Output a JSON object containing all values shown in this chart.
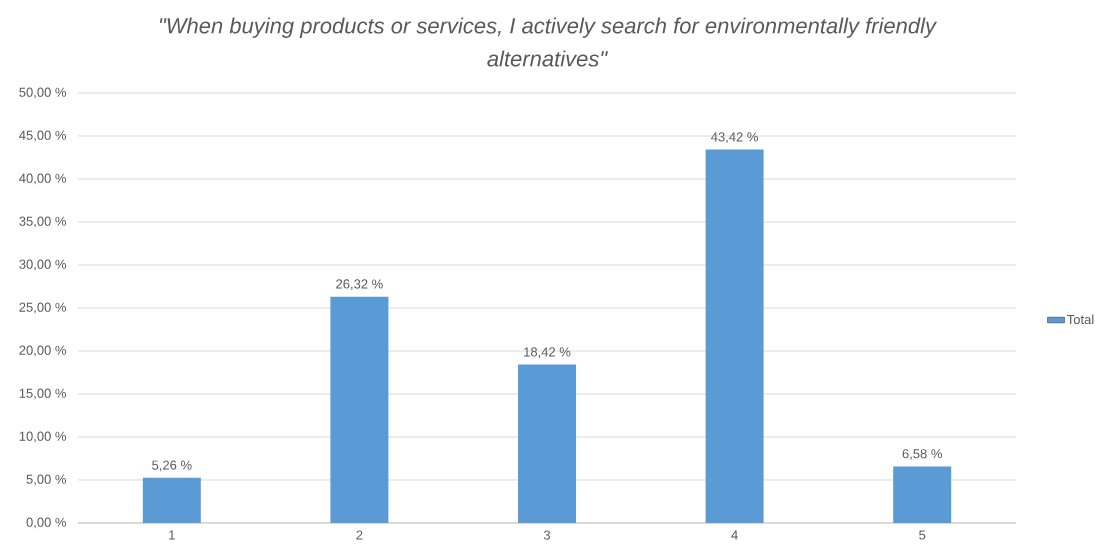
{
  "chart_data": {
    "type": "bar",
    "title": "\"When buying products or services, I actively search for environmentally friendly alternatives\"",
    "categories": [
      "1",
      "2",
      "3",
      "4",
      "5"
    ],
    "series": [
      {
        "name": "Total",
        "color": "#5b9bd5",
        "values": [
          5.26,
          26.32,
          18.42,
          43.42,
          6.58
        ],
        "value_labels": [
          "5,26 %",
          "26,32 %",
          "18,42 %",
          "43,42 %",
          "6,58 %"
        ]
      }
    ],
    "ylim": [
      0,
      50
    ],
    "yticks": [
      {
        "value": 0,
        "label": "0,00 %"
      },
      {
        "value": 5,
        "label": "5,00 %"
      },
      {
        "value": 10,
        "label": "10,00 %"
      },
      {
        "value": 15,
        "label": "15,00 %"
      },
      {
        "value": 20,
        "label": "20,00 %"
      },
      {
        "value": 25,
        "label": "25,00 %"
      },
      {
        "value": 30,
        "label": "30,00 %"
      },
      {
        "value": 35,
        "label": "35,00 %"
      },
      {
        "value": 40,
        "label": "40,00 %"
      },
      {
        "value": 45,
        "label": "45,00 %"
      },
      {
        "value": 50,
        "label": "50,00 %"
      }
    ],
    "grid": "y",
    "legend": "right"
  }
}
